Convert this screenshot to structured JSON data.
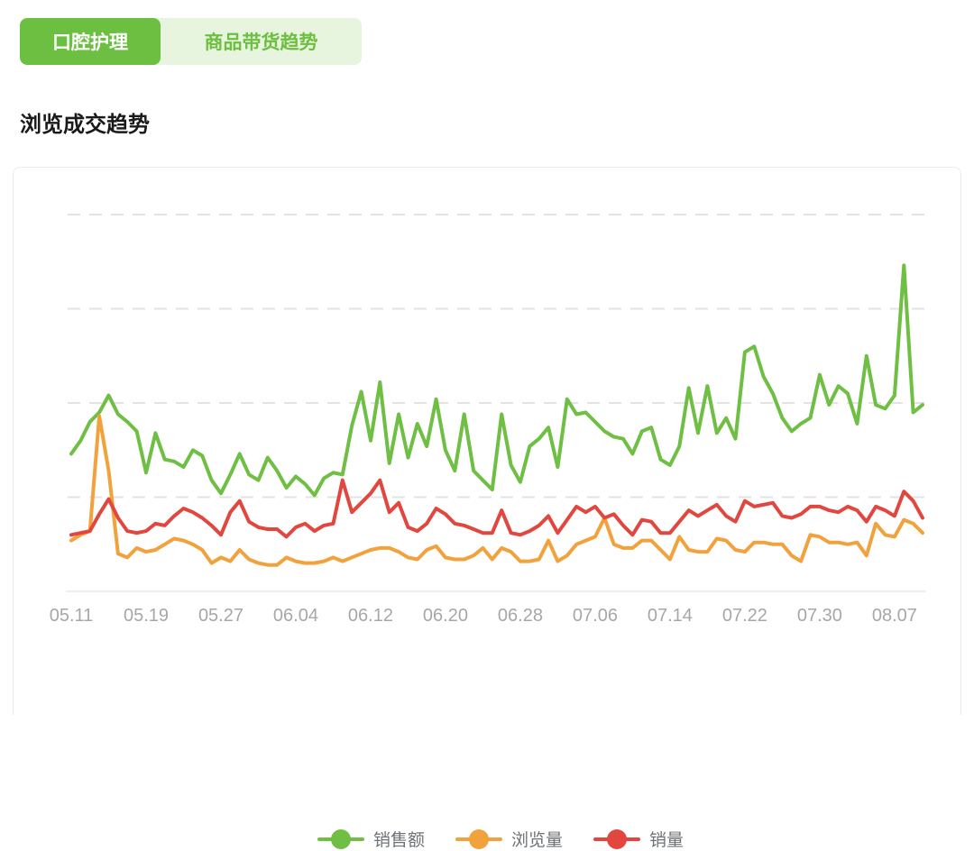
{
  "tabs": {
    "active_label": "口腔护理",
    "inactive_label": "商品带货趋势"
  },
  "section_title": "浏览成交趋势",
  "colors": {
    "tab_active_bg": "#6cbf40",
    "tab_inactive_bg": "#e8f5de",
    "tab_inactive_text": "#6cbf40",
    "grid_line": "#e3e3e3",
    "axis_line": "#eeeeee",
    "tick_label": "#a7a7a7",
    "legend_text": "#6e7276"
  },
  "chart_data": {
    "type": "line",
    "title": "浏览成交趋势",
    "xlabel": "",
    "ylabel": "",
    "x_tick_labels": [
      "05.11",
      "05.19",
      "05.27",
      "06.04",
      "06.12",
      "06.20",
      "06.28",
      "07.06",
      "07.14",
      "07.22",
      "07.30",
      "08.07"
    ],
    "x_tick_point_indices": [
      0,
      8,
      16,
      24,
      32,
      40,
      48,
      56,
      64,
      72,
      80,
      88
    ],
    "points_per_series": 92,
    "x_is_daily_dates": true,
    "y_axis_labels_shown": false,
    "y_gridline_values": [
      25,
      50,
      75,
      100
    ],
    "ylim": [
      0,
      105
    ],
    "grid": "horizontal-dashed",
    "legend_position": "bottom-center",
    "series": [
      {
        "name": "销售额",
        "key": "sales",
        "color": "#6fbf44",
        "values": [
          36.5,
          40,
          45,
          47.5,
          52,
          47,
          45,
          42.5,
          31.5,
          42,
          35,
          34.5,
          33,
          37.5,
          36,
          29.5,
          26,
          31,
          36.5,
          31,
          29.5,
          35.5,
          32,
          27.5,
          30.5,
          28.5,
          25.5,
          30,
          31.5,
          31,
          44,
          53,
          40,
          55.5,
          34,
          47,
          35.5,
          44.5,
          38.5,
          51,
          37.5,
          32,
          47,
          32,
          29.5,
          27,
          47,
          33.5,
          29,
          38.5,
          40.5,
          43.5,
          33,
          51,
          47,
          47.5,
          45,
          42.5,
          41,
          40.5,
          36.5,
          42.5,
          43.5,
          35,
          33.5,
          38.5,
          54,
          42,
          54.5,
          42,
          46,
          40.5,
          63.5,
          65,
          57,
          52.5,
          46,
          42.5,
          44.5,
          46,
          57.5,
          49.5,
          54.5,
          52.5,
          44.5,
          62.5,
          49.5,
          48.5,
          52,
          86.5,
          47.5,
          49.5
        ]
      },
      {
        "name": "浏览量",
        "key": "views",
        "color": "#f2a23c",
        "values": [
          13.5,
          15,
          16,
          46.5,
          32,
          10,
          9,
          11.5,
          10.5,
          11,
          12.5,
          14,
          13.5,
          12.5,
          11,
          7.5,
          9,
          8,
          11,
          8.5,
          7.5,
          7,
          7,
          9,
          8,
          7.5,
          7.5,
          8,
          9,
          8,
          9,
          10,
          11,
          11.5,
          11.5,
          10.5,
          9,
          8.5,
          11,
          12,
          9,
          8.5,
          8.5,
          9.5,
          11.5,
          8.5,
          11.5,
          10.5,
          8,
          8,
          8.5,
          13.5,
          8,
          9.5,
          12.5,
          13.5,
          14.5,
          19.5,
          12.5,
          11.5,
          11.5,
          13.5,
          13.5,
          11,
          8.5,
          14.5,
          11,
          10.5,
          10.5,
          14,
          13.5,
          11,
          10.5,
          13,
          13,
          12.5,
          12.5,
          9.5,
          8,
          15,
          14.5,
          13,
          13,
          12.5,
          13,
          9.5,
          18,
          15,
          14.5,
          19,
          18,
          15.5
        ]
      },
      {
        "name": "销量",
        "key": "volume",
        "color": "#e2473f",
        "values": [
          15,
          15.5,
          16,
          20.5,
          24.5,
          19.5,
          16,
          15.5,
          16,
          18,
          17.5,
          20,
          22,
          21,
          19.5,
          17.5,
          15,
          21,
          24,
          18.5,
          17,
          16.5,
          16.5,
          14.5,
          17,
          18,
          16,
          17.5,
          18,
          29.5,
          21,
          23.5,
          26,
          29.5,
          21,
          23.5,
          17,
          16,
          18,
          22,
          20.5,
          18,
          17.5,
          16.5,
          15.5,
          15.5,
          21.5,
          15.5,
          15,
          16,
          17.5,
          20,
          15.5,
          19,
          22.5,
          21,
          22.5,
          19.5,
          20.5,
          17.5,
          15,
          19,
          18.5,
          15.5,
          15.5,
          18.5,
          21.5,
          20,
          21.5,
          23,
          20,
          18.5,
          24,
          22.5,
          23,
          23.5,
          20,
          19.5,
          20.5,
          22.5,
          22.5,
          21.5,
          21,
          22.5,
          21.5,
          18.5,
          22.5,
          21.5,
          20,
          26.5,
          24,
          19.5
        ]
      }
    ]
  }
}
